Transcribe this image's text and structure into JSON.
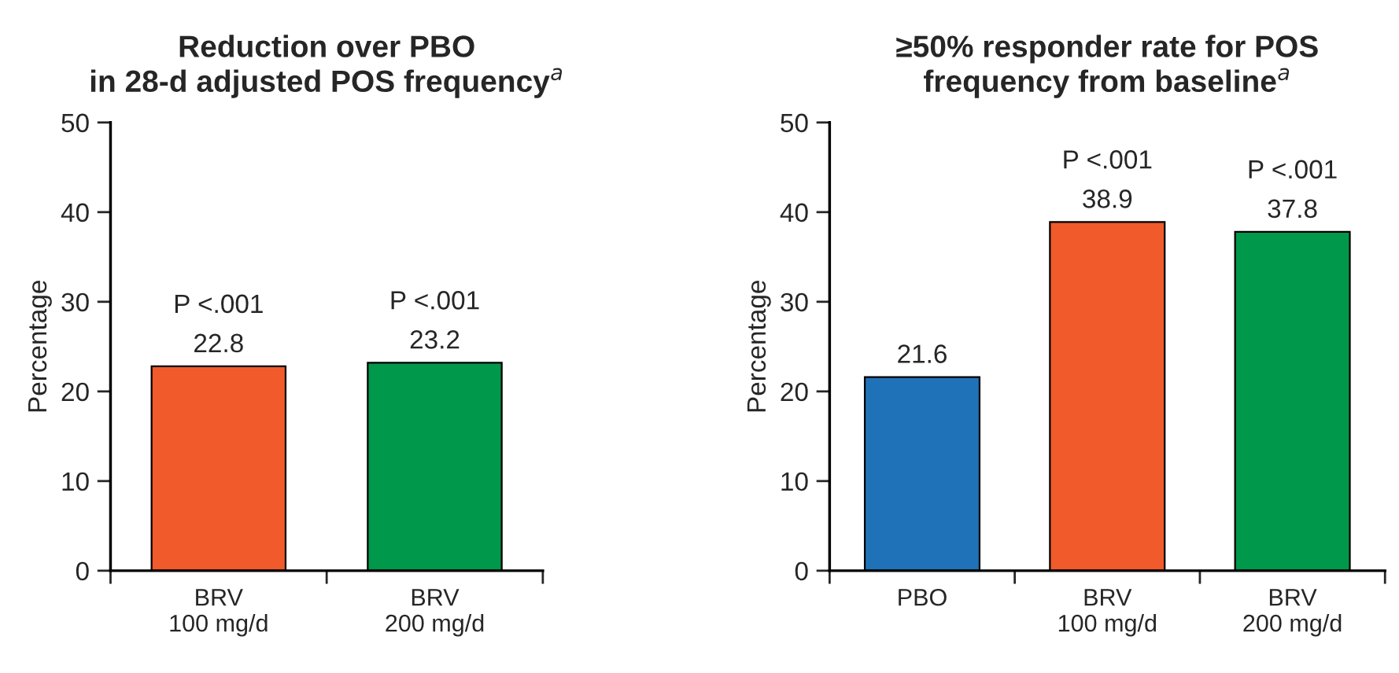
{
  "chart_data": [
    {
      "type": "bar",
      "title": "Reduction over PBO\nin 28-d adjusted POS frequency$^{a}$",
      "ylabel": "Percentage",
      "categories": [
        "BRV\n100 mg/d",
        "BRV\n200 mg/d"
      ],
      "values": [
        22.8,
        23.2
      ],
      "colors": [
        "#f15a2b",
        "#00984a"
      ],
      "ylim": [
        0,
        50
      ],
      "yticks": [
        0,
        10,
        20,
        30,
        40,
        50
      ],
      "data_labels": true,
      "grid": false,
      "legend": false,
      "annotations": [
        {
          "text": "P <.001",
          "x": "BRV\n100 mg/d",
          "y": 22.8
        },
        {
          "text": "P <.001",
          "x": "BRV\n200 mg/d",
          "y": 23.2
        }
      ]
    },
    {
      "type": "bar",
      "title": "≥50% responder rate for POS\nfrequency from baseline$^{a}$",
      "ylabel": "Percentage",
      "categories": [
        "PBO",
        "BRV\n100 mg/d",
        "BRV\n200 mg/d"
      ],
      "values": [
        21.6,
        38.9,
        37.8
      ],
      "colors": [
        "#1f72b8",
        "#f15a2b",
        "#00984a"
      ],
      "ylim": [
        0,
        50
      ],
      "yticks": [
        0,
        10,
        20,
        30,
        40,
        50
      ],
      "data_labels": true,
      "grid": false,
      "legend": false,
      "annotations": [
        {
          "text": "P <.001",
          "x": "BRV\n100 mg/d",
          "y": 38.9
        },
        {
          "text": "P <.001",
          "x": "BRV\n200 mg/d",
          "y": 37.8
        }
      ]
    }
  ]
}
